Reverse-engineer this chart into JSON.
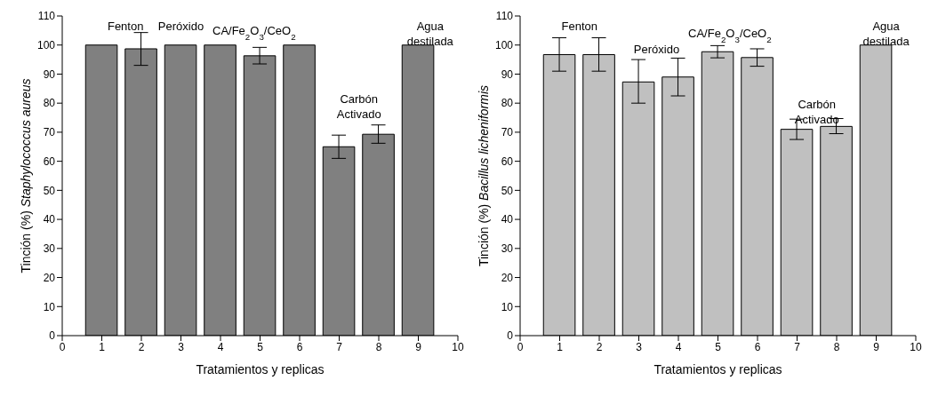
{
  "chart_data": [
    {
      "type": "bar",
      "xlabel": "Tratamientos y replicas",
      "ylabel": "Tinción (%) Staphylococcus aureus",
      "x": [
        1,
        2,
        3,
        4,
        5,
        6,
        7,
        8,
        9
      ],
      "values": [
        100,
        98.7,
        100,
        100,
        96.3,
        100,
        65,
        69.3,
        100
      ],
      "errors": [
        null,
        [
          93,
          104.3
        ],
        null,
        null,
        [
          93.5,
          99.2
        ],
        null,
        [
          61,
          69
        ],
        [
          66.2,
          72.5
        ],
        null
      ],
      "color": "#808080",
      "xlim": [
        0,
        10
      ],
      "xticks": [
        0,
        1,
        2,
        3,
        4,
        5,
        6,
        7,
        8,
        9,
        10
      ],
      "ylim": [
        0,
        110
      ],
      "yticks": [
        0,
        10,
        20,
        30,
        40,
        50,
        60,
        70,
        80,
        90,
        100,
        110
      ],
      "grid": false,
      "legend": false,
      "annotations": [
        "Fenton",
        "Peróxido",
        "CA/Fe$_{2}$O$_{3}$/CeO$_{2}$",
        "Carbón\nActivado",
        "Agua\ndestilada"
      ]
    },
    {
      "type": "bar",
      "xlabel": "Tratamientos y replicas",
      "ylabel": "Tinción (%) Bacillus licheniformis",
      "x": [
        1,
        2,
        3,
        4,
        5,
        6,
        7,
        8,
        9
      ],
      "values": [
        96.7,
        96.7,
        87.3,
        89,
        97.7,
        95.7,
        71,
        72,
        100
      ],
      "errors": [
        [
          91,
          102.5
        ],
        [
          91,
          102.5
        ],
        [
          80,
          95
        ],
        [
          82.5,
          95.5
        ],
        [
          95.6,
          99.8
        ],
        [
          92.7,
          98.7
        ],
        [
          67.5,
          74.5
        ],
        [
          69.5,
          74.7
        ],
        null
      ],
      "color": "#c0c0c0",
      "xlim": [
        0,
        10
      ],
      "xticks": [
        0,
        1,
        2,
        3,
        4,
        5,
        6,
        7,
        8,
        9,
        10
      ],
      "ylim": [
        0,
        110
      ],
      "yticks": [
        0,
        10,
        20,
        30,
        40,
        50,
        60,
        70,
        80,
        90,
        100,
        110
      ],
      "grid": false,
      "legend": false,
      "annotations": [
        "Fenton",
        "Peróxido",
        "CA/Fe$_{2}$O$_{3}$/CeO$_{2}$",
        "Carbón\nActivado",
        "Agua\ndestilada"
      ]
    }
  ]
}
